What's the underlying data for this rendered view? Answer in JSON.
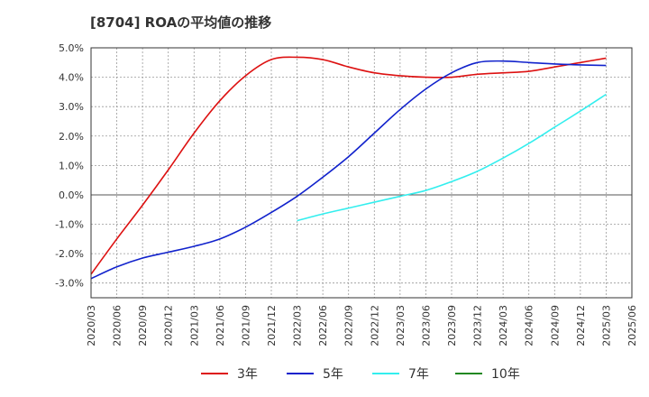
{
  "chart_data": {
    "type": "line",
    "title": "[8704]  ROAの平均値の推移",
    "xlabel": "",
    "ylabel": "",
    "ylim": [
      -3.5,
      5.0
    ],
    "y_ticks": [
      5.0,
      4.0,
      3.0,
      2.0,
      1.0,
      0.0,
      -1.0,
      -2.0,
      -3.0
    ],
    "y_tick_labels": [
      "5.0%",
      "4.0%",
      "3.0%",
      "2.0%",
      "1.0%",
      "0.0%",
      "-1.0%",
      "-2.0%",
      "-3.0%"
    ],
    "categories": [
      "2020/03",
      "2020/06",
      "2020/09",
      "2020/12",
      "2021/03",
      "2021/06",
      "2021/09",
      "2021/12",
      "2022/03",
      "2022/06",
      "2022/09",
      "2022/12",
      "2023/03",
      "2023/06",
      "2023/09",
      "2023/12",
      "2024/03",
      "2024/06",
      "2024/09",
      "2024/12",
      "2025/03",
      "2025/06"
    ],
    "grid": true,
    "legend_position": "bottom",
    "series": [
      {
        "name": "3年",
        "color": "#dd1111",
        "values": [
          -2.7,
          -1.5,
          -0.35,
          0.85,
          2.1,
          3.2,
          4.05,
          4.6,
          4.68,
          4.6,
          4.35,
          4.15,
          4.05,
          4.0,
          4.0,
          4.1,
          4.15,
          4.2,
          4.35,
          4.5,
          4.65,
          null
        ]
      },
      {
        "name": "5年",
        "color": "#1122cc",
        "values": [
          -2.85,
          -2.45,
          -2.15,
          -1.95,
          -1.75,
          -1.5,
          -1.1,
          -0.6,
          -0.05,
          0.6,
          1.3,
          2.1,
          2.9,
          3.6,
          4.15,
          4.5,
          4.55,
          4.5,
          4.45,
          4.42,
          4.4,
          null
        ]
      },
      {
        "name": "7年",
        "color": "#33eeee",
        "values": [
          null,
          null,
          null,
          null,
          null,
          null,
          null,
          null,
          -0.88,
          -0.65,
          -0.45,
          -0.25,
          -0.05,
          0.15,
          0.45,
          0.8,
          1.25,
          1.75,
          2.3,
          2.85,
          3.42,
          null
        ]
      },
      {
        "name": "10年",
        "color": "#228822",
        "values": [
          null,
          null,
          null,
          null,
          null,
          null,
          null,
          null,
          null,
          null,
          null,
          null,
          null,
          null,
          null,
          null,
          null,
          null,
          null,
          null,
          null,
          null
        ]
      }
    ]
  }
}
